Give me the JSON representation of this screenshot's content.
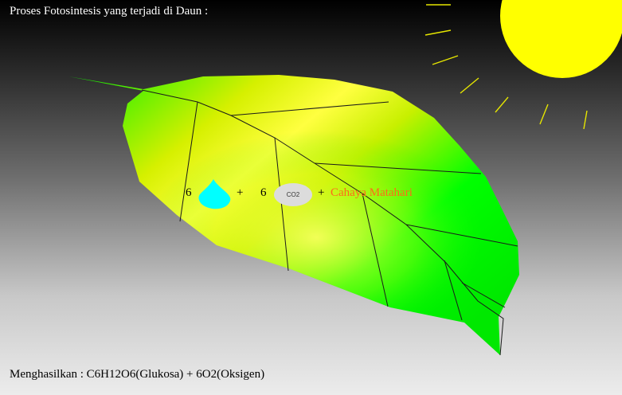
{
  "title": "Proses Fotosintesis yang terjadi di Daun :",
  "equation": {
    "water_coefficient": "6",
    "plus_1": "+",
    "co2_coefficient": "6",
    "co2_label": "CO2",
    "plus_2": "+",
    "light_label": "Cahaya Matahari"
  },
  "result": "Menghasilkan : C6H12O6(Glukosa) + 6O2(Oksigen)",
  "colors": {
    "leaf": "#00ff00",
    "leaf_highlight": "#ffff00",
    "sun": "#ffff00",
    "water": "#00ffff",
    "light_text": "#ff6a1a"
  },
  "icons": [
    "sun-icon",
    "water-drop-icon",
    "co2-icon",
    "leaf-icon"
  ]
}
